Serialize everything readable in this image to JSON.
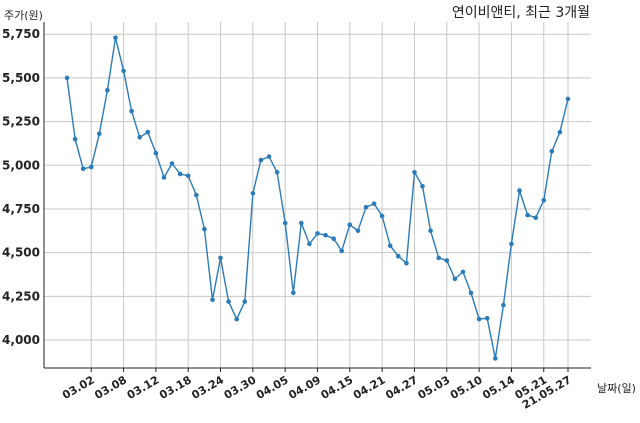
{
  "chart_data": {
    "type": "line",
    "title": "연이비앤티, 최근 3개월",
    "ylabel": "주가(원)",
    "xlabel": "날짜(일)",
    "ylim": [
      3840,
      5820
    ],
    "yticks": [
      4000,
      4250,
      4500,
      4750,
      5000,
      5250,
      5500,
      5750
    ],
    "ytick_labels": [
      "4,000",
      "4,250",
      "4,500",
      "4,750",
      "5,000",
      "5,250",
      "5,500",
      "5,750"
    ],
    "x_tick_labels": [
      {
        "label": "03.02",
        "index": 3
      },
      {
        "label": "03.08",
        "index": 7
      },
      {
        "label": "03.12",
        "index": 11
      },
      {
        "label": "03.18",
        "index": 15
      },
      {
        "label": "03.24",
        "index": 19
      },
      {
        "label": "03.30",
        "index": 23
      },
      {
        "label": "04.05",
        "index": 27
      },
      {
        "label": "04.09",
        "index": 31
      },
      {
        "label": "04.15",
        "index": 35
      },
      {
        "label": "04.21",
        "index": 39
      },
      {
        "label": "04.27",
        "index": 43
      },
      {
        "label": "05.03",
        "index": 47
      },
      {
        "label": "05.10",
        "index": 51
      },
      {
        "label": "05.14",
        "index": 55
      },
      {
        "label": "05.21",
        "index": 59
      },
      {
        "label": "21.05.27",
        "index": 62
      }
    ],
    "grid": true,
    "series": [
      {
        "values": [
          5500,
          5150,
          4980,
          4990,
          5180,
          5430,
          5730,
          5540,
          5310,
          5160,
          5190,
          5070,
          4930,
          5010,
          4950,
          4940,
          4830,
          4635,
          4230,
          4470,
          4220,
          4120,
          4220,
          4840,
          5030,
          5050,
          4960,
          4670,
          4270,
          4670,
          4550,
          4610,
          4600,
          4580,
          4510,
          4660,
          4625,
          4760,
          4780,
          4710,
          4540,
          4480,
          4440,
          4960,
          4880,
          4625,
          4470,
          4455,
          4350,
          4390,
          4270,
          4120,
          4125,
          3895,
          4200,
          4550,
          4855,
          4715,
          4700,
          4800,
          5080,
          5190,
          5380
        ],
        "color": "#2b7bb9"
      }
    ]
  }
}
